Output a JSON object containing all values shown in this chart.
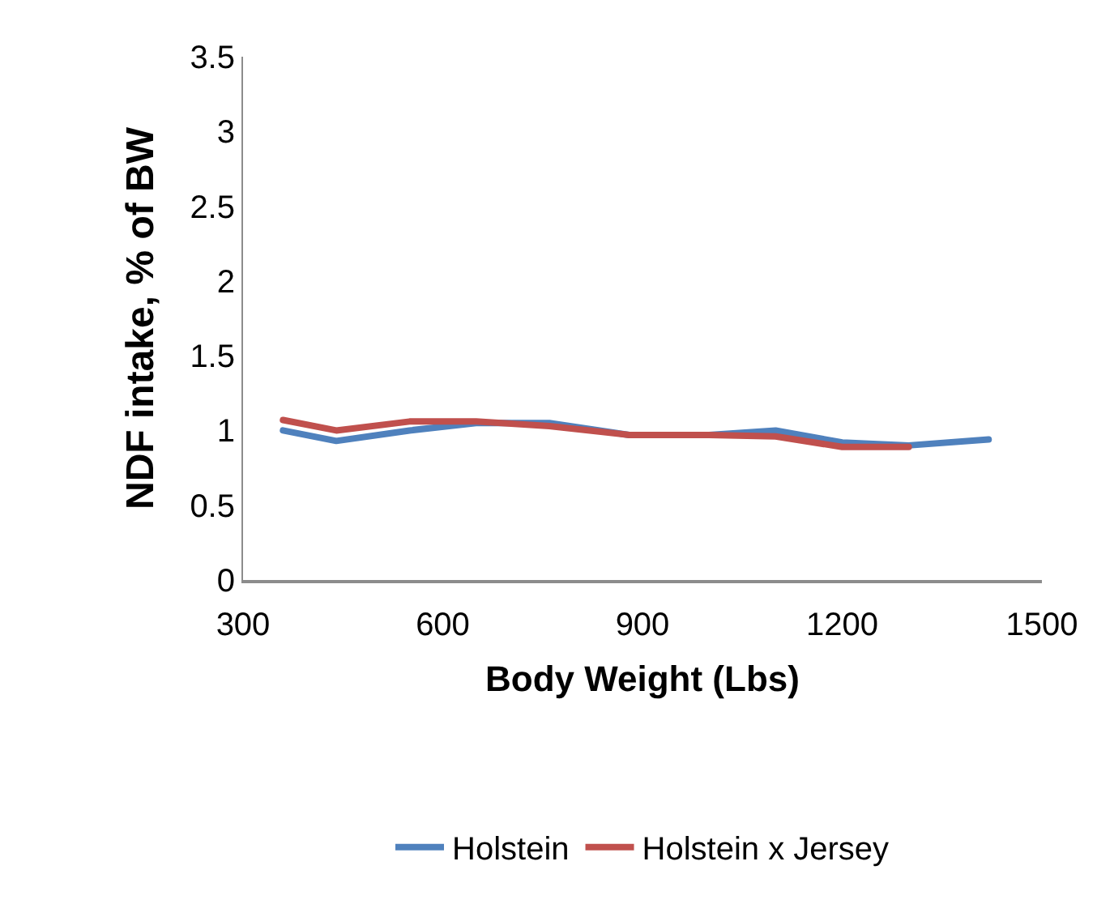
{
  "chart_data": {
    "type": "line",
    "xlabel": "Body Weight (Lbs)",
    "ylabel": "NDF intake, % of BW",
    "x": [
      360,
      440,
      550,
      650,
      760,
      880,
      1000,
      1100,
      1200,
      1300,
      1420
    ],
    "series": [
      {
        "name": "Holstein",
        "color": "#4f81bd",
        "values": [
          1.0,
          0.93,
          1.0,
          1.05,
          1.05,
          0.97,
          0.97,
          1.0,
          0.92,
          0.9,
          0.94
        ]
      },
      {
        "name": "Holstein x Jersey",
        "color": "#c0504d",
        "x": [
          360,
          440,
          550,
          650,
          760,
          880,
          1000,
          1100,
          1200,
          1300
        ],
        "values": [
          1.07,
          1.0,
          1.06,
          1.06,
          1.03,
          0.97,
          0.97,
          0.96,
          0.89,
          0.89
        ]
      }
    ],
    "xlim": [
      300,
      1500
    ],
    "xticks": [
      300,
      600,
      900,
      1200,
      1500
    ],
    "ylim": [
      0,
      3.5
    ],
    "yticks": [
      0,
      0.5,
      1,
      1.5,
      2,
      2.5,
      3,
      3.5
    ],
    "legend": "bottom",
    "marker": "none",
    "line_style": "solid"
  }
}
